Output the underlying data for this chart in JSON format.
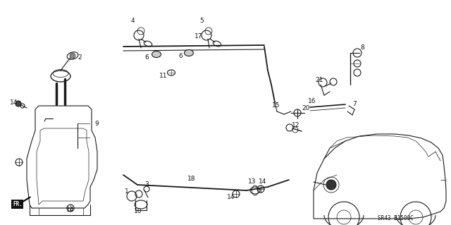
{
  "bg_color": "#ffffff",
  "diagram_code": "SR43 B1500C",
  "line_color": "#1a1a1a",
  "text_color": "#111111",
  "font_size_num": 6.5,
  "font_size_code": 5.5,
  "figsize": [
    6.4,
    3.19
  ],
  "dpi": 100
}
